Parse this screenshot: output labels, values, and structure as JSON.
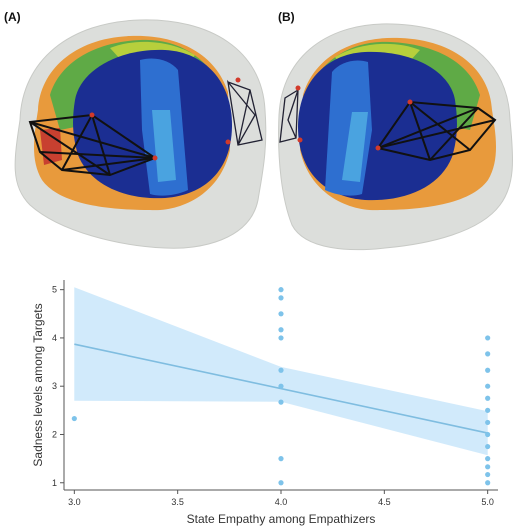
{
  "panels": [
    {
      "label": "(A)",
      "view": "right-lateral"
    },
    {
      "label": "(B)",
      "view": "left-lateral"
    }
  ],
  "colors": {
    "skull": "#d9dbd6",
    "region_outer": "#ec9a3a",
    "region_green": "#5fb04a",
    "region_lime": "#b5cf3a",
    "region_navy": "#1a2d8f",
    "region_blue": "#2d6fd0",
    "region_light": "#4aa3e0",
    "network_edge": "#111111",
    "network_node": "#d23a2a",
    "point": "#7ec3ea",
    "line": "#7fbde0",
    "ribbon": "#cfe9fb"
  },
  "chart_data": {
    "type": "scatter",
    "xlabel": "State Empathy among Empathizers",
    "ylabel": "Sadness levels among Targets",
    "xlim": [
      2.95,
      5.05
    ],
    "ylim": [
      0.85,
      5.2
    ],
    "xticks": [
      "3.0",
      "3.5",
      "4.0",
      "4.5",
      "5.0"
    ],
    "yticks": [
      "1",
      "2",
      "3",
      "4",
      "5"
    ],
    "grid": false,
    "points": [
      {
        "x": 3.0,
        "y": 2.33
      },
      {
        "x": 4.0,
        "y": 5.0
      },
      {
        "x": 4.0,
        "y": 4.83
      },
      {
        "x": 4.0,
        "y": 4.5
      },
      {
        "x": 4.0,
        "y": 4.17
      },
      {
        "x": 4.0,
        "y": 4.0
      },
      {
        "x": 4.0,
        "y": 3.33
      },
      {
        "x": 4.0,
        "y": 3.0
      },
      {
        "x": 4.0,
        "y": 2.67
      },
      {
        "x": 4.0,
        "y": 1.5
      },
      {
        "x": 4.0,
        "y": 1.0
      },
      {
        "x": 5.0,
        "y": 4.0
      },
      {
        "x": 5.0,
        "y": 3.67
      },
      {
        "x": 5.0,
        "y": 3.33
      },
      {
        "x": 5.0,
        "y": 3.0
      },
      {
        "x": 5.0,
        "y": 2.75
      },
      {
        "x": 5.0,
        "y": 2.5
      },
      {
        "x": 5.0,
        "y": 2.25
      },
      {
        "x": 5.0,
        "y": 2.0
      },
      {
        "x": 5.0,
        "y": 1.75
      },
      {
        "x": 5.0,
        "y": 1.5
      },
      {
        "x": 5.0,
        "y": 1.33
      },
      {
        "x": 5.0,
        "y": 1.17
      },
      {
        "x": 5.0,
        "y": 1.0
      }
    ],
    "fit": {
      "x": [
        3.0,
        5.0
      ],
      "y": [
        3.87,
        2.03
      ]
    },
    "ci": {
      "x": [
        3.0,
        4.0,
        5.0
      ],
      "lower": [
        2.7,
        2.68,
        1.57
      ],
      "upper": [
        5.05,
        3.4,
        2.48
      ]
    }
  }
}
